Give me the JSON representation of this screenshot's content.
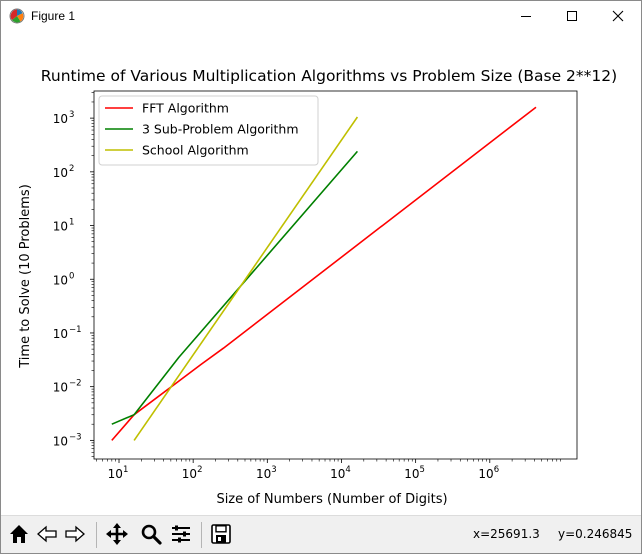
{
  "window": {
    "title": "Figure 1",
    "controls": [
      "minimize",
      "maximize",
      "close"
    ]
  },
  "toolbar": {
    "buttons": [
      "home-icon",
      "back-icon",
      "forward-icon",
      "pan-icon",
      "zoom-icon",
      "configure-subplots-icon",
      "save-icon"
    ],
    "coords": {
      "x": "x=25691.3",
      "y": "y=0.246845"
    }
  },
  "chart_data": {
    "type": "line",
    "title": "Runtime of Various Multiplication Algorithms vs Problem Size (Base 2**12)",
    "xlabel": "Size of Numbers (Number of Digits)",
    "ylabel": "Time to Solve (10 Problems)",
    "xscale": "log",
    "yscale": "log",
    "xlim": [
      4.6,
      15000000
    ],
    "ylim": [
      0.00045,
      3200
    ],
    "xticks": [
      {
        "value": 10,
        "base": "10",
        "exp": "1"
      },
      {
        "value": 100,
        "base": "10",
        "exp": "2"
      },
      {
        "value": 1000,
        "base": "10",
        "exp": "3"
      },
      {
        "value": 10000,
        "base": "10",
        "exp": "4"
      },
      {
        "value": 100000,
        "base": "10",
        "exp": "5"
      },
      {
        "value": 1000000,
        "base": "10",
        "exp": "6"
      }
    ],
    "yticks": [
      {
        "value": 0.001,
        "base": "10",
        "exp": "−3"
      },
      {
        "value": 0.01,
        "base": "10",
        "exp": "−2"
      },
      {
        "value": 0.1,
        "base": "10",
        "exp": "−1"
      },
      {
        "value": 1,
        "base": "10",
        "exp": "0"
      },
      {
        "value": 10,
        "base": "10",
        "exp": "1"
      },
      {
        "value": 100,
        "base": "10",
        "exp": "2"
      },
      {
        "value": 1000,
        "base": "10",
        "exp": "3"
      }
    ],
    "legend_position": "upper-left",
    "grid": false,
    "series": [
      {
        "name": "FFT Algorithm",
        "color": "#ff0000",
        "x": [
          8,
          16,
          128,
          256,
          4194304
        ],
        "y": [
          0.001,
          0.003,
          0.026,
          0.052,
          1600
        ]
      },
      {
        "name": "3 Sub-Problem Algorithm",
        "color": "#008000",
        "x": [
          8,
          16,
          64,
          16384
        ],
        "y": [
          0.002,
          0.003,
          0.035,
          240
        ]
      },
      {
        "name": "School Algorithm",
        "color": "#bfbf00",
        "x": [
          16,
          16384
        ],
        "y": [
          0.001,
          1050
        ]
      }
    ]
  }
}
